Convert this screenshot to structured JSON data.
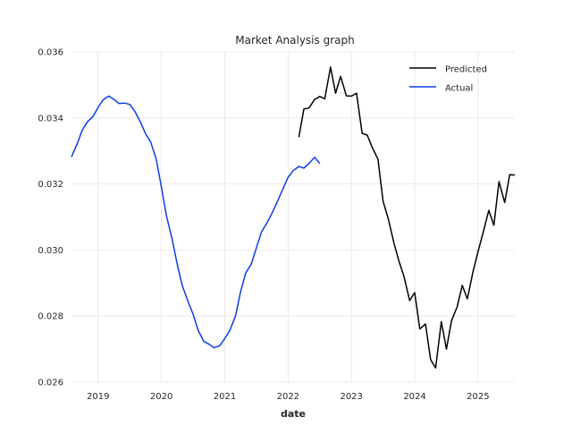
{
  "chart_data": {
    "type": "line",
    "title": "Market Analysis graph",
    "xlabel": "date",
    "ylabel": "",
    "xlim": [
      2018.58,
      2025.58
    ],
    "ylim": [
      0.026,
      0.036
    ],
    "x_ticks": [
      2019,
      2020,
      2021,
      2022,
      2023,
      2024,
      2025
    ],
    "x_tick_labels": [
      "2019",
      "2020",
      "2021",
      "2022",
      "2023",
      "2024",
      "2025"
    ],
    "y_ticks": [
      0.026,
      0.028,
      0.03,
      0.032,
      0.034,
      0.036
    ],
    "y_tick_labels": [
      "0.026",
      "0.028",
      "0.030",
      "0.032",
      "0.034",
      "0.036"
    ],
    "grid": true,
    "legend_position": "top-right",
    "series": [
      {
        "name": "Predicted",
        "color": "#000000",
        "x": [
          2022.17,
          2022.25,
          2022.33,
          2022.42,
          2022.5,
          2022.58,
          2022.67,
          2022.75,
          2022.83,
          2022.92,
          2023.0,
          2023.08,
          2023.17,
          2023.25,
          2023.33,
          2023.42,
          2023.5,
          2023.58,
          2023.67,
          2023.75,
          2023.83,
          2023.92,
          2024.0,
          2024.08,
          2024.17,
          2024.25,
          2024.33,
          2024.42,
          2024.5,
          2024.58,
          2024.67,
          2024.75,
          2024.83,
          2024.92,
          2025.0,
          2025.08,
          2025.17,
          2025.25,
          2025.33,
          2025.42,
          2025.5,
          2025.58
        ],
        "values": [
          0.03342,
          0.03427,
          0.0343,
          0.03456,
          0.03465,
          0.03458,
          0.03554,
          0.03475,
          0.03526,
          0.03467,
          0.03466,
          0.03475,
          0.03353,
          0.03348,
          0.0331,
          0.03275,
          0.03148,
          0.03096,
          0.03022,
          0.02967,
          0.0292,
          0.02847,
          0.02871,
          0.02761,
          0.02776,
          0.02668,
          0.02643,
          0.02783,
          0.027,
          0.02785,
          0.02828,
          0.02893,
          0.02852,
          0.02934,
          0.02996,
          0.03053,
          0.0312,
          0.03075,
          0.03207,
          0.03144,
          0.03228,
          0.03227
        ]
      },
      {
        "name": "Actual",
        "color": "#0a3ee8",
        "x": [
          2018.58,
          2018.67,
          2018.75,
          2018.83,
          2018.92,
          2019.0,
          2019.08,
          2019.17,
          2019.25,
          2019.33,
          2019.42,
          2019.5,
          2019.58,
          2019.67,
          2019.75,
          2019.83,
          2019.92,
          2020.0,
          2020.08,
          2020.17,
          2020.25,
          2020.33,
          2020.42,
          2020.5,
          2020.58,
          2020.67,
          2020.75,
          2020.83,
          2020.92,
          2021.0,
          2021.08,
          2021.17,
          2021.25,
          2021.33,
          2021.42,
          2021.5,
          2021.58,
          2021.67,
          2021.75,
          2021.83,
          2021.92,
          2022.0,
          2022.08,
          2022.17,
          2022.25,
          2022.33,
          2022.42,
          2022.5
        ],
        "values": [
          0.03282,
          0.03322,
          0.03363,
          0.03388,
          0.03404,
          0.03432,
          0.03455,
          0.03466,
          0.03456,
          0.03444,
          0.03445,
          0.03441,
          0.0342,
          0.03387,
          0.03352,
          0.03327,
          0.03274,
          0.0319,
          0.03103,
          0.03032,
          0.02957,
          0.02892,
          0.02844,
          0.02806,
          0.02757,
          0.02723,
          0.02715,
          0.02704,
          0.0271,
          0.02732,
          0.02756,
          0.028,
          0.02874,
          0.0293,
          0.02958,
          0.03007,
          0.03055,
          0.03083,
          0.03113,
          0.03146,
          0.03186,
          0.0322,
          0.0324,
          0.03253,
          0.03248,
          0.03262,
          0.03281,
          0.03262
        ]
      }
    ]
  }
}
